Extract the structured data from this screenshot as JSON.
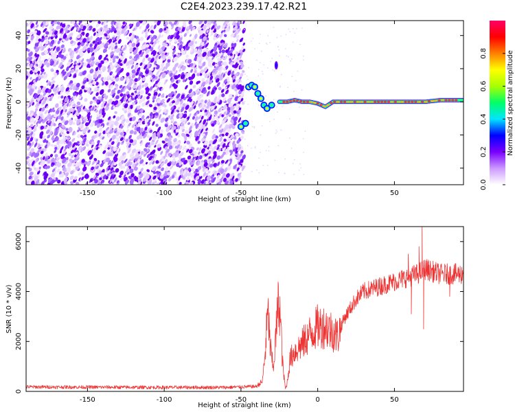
{
  "figure": {
    "title": "C2E4.2023.239.17.42.R21"
  },
  "chart_data": [
    {
      "type": "heatmap",
      "xlabel": "Height of straight line (km)",
      "ylabel": "Frequency (Hz)",
      "xlim": [
        -190,
        95
      ],
      "ylim": [
        -50,
        49
      ],
      "xticks": [
        -150,
        -100,
        -50,
        0,
        50
      ],
      "yticks": [
        -40,
        -20,
        0,
        20,
        40
      ],
      "colorbar": {
        "label": "Normalized spectral amplitude",
        "range": [
          0,
          1
        ],
        "ticks": [
          "0.0",
          "0.2",
          "0.4",
          "0.6",
          "0.8"
        ],
        "colors": [
          "#ffffff",
          "#cc99ff",
          "#7a00ff",
          "#0000ff",
          "#00e5ff",
          "#00ff66",
          "#a8ff00",
          "#ffff00",
          "#ff8000",
          "#ff0000",
          "#ff0066"
        ]
      },
      "noise_region": {
        "x_from": -190,
        "x_to": -50,
        "freq_range": [
          -50,
          49
        ]
      },
      "ridge": [
        {
          "x": -50,
          "y": -15
        },
        {
          "x": -47,
          "y": -13
        },
        {
          "x": -45,
          "y": 9
        },
        {
          "x": -43,
          "y": 10
        },
        {
          "x": -41,
          "y": 9
        },
        {
          "x": -39,
          "y": 5
        },
        {
          "x": -37,
          "y": 2
        },
        {
          "x": -35,
          "y": -2
        },
        {
          "x": -33,
          "y": -4
        },
        {
          "x": -30,
          "y": -2
        },
        {
          "x": -27,
          "y": 22
        },
        {
          "x": -25,
          "y": 0
        },
        {
          "x": -20,
          "y": 0
        },
        {
          "x": -15,
          "y": 1
        },
        {
          "x": -10,
          "y": 0
        },
        {
          "x": -5,
          "y": 0
        },
        {
          "x": 0,
          "y": -1
        },
        {
          "x": 5,
          "y": -3
        },
        {
          "x": 10,
          "y": 0
        },
        {
          "x": 20,
          "y": 0
        },
        {
          "x": 30,
          "y": 0
        },
        {
          "x": 40,
          "y": 0
        },
        {
          "x": 50,
          "y": 0
        },
        {
          "x": 60,
          "y": 0
        },
        {
          "x": 70,
          "y": 0
        },
        {
          "x": 80,
          "y": 1
        },
        {
          "x": 90,
          "y": 1
        }
      ]
    },
    {
      "type": "line",
      "xlabel": "Height of straight line (km)",
      "ylabel": "SNR (10 * v/v)",
      "xlim": [
        -190,
        95
      ],
      "ylim": [
        0,
        6600
      ],
      "xticks": [
        -150,
        -100,
        -50,
        0,
        50
      ],
      "yticks": [
        0,
        2000,
        4000,
        6000
      ],
      "color": "#ee3333",
      "envelope": [
        {
          "x": -190,
          "y": 180
        },
        {
          "x": -150,
          "y": 170
        },
        {
          "x": -100,
          "y": 160
        },
        {
          "x": -60,
          "y": 160
        },
        {
          "x": -40,
          "y": 200
        },
        {
          "x": -36,
          "y": 400
        },
        {
          "x": -34,
          "y": 1700
        },
        {
          "x": -33,
          "y": 2800
        },
        {
          "x": -32,
          "y": 3000
        },
        {
          "x": -31,
          "y": 1800
        },
        {
          "x": -29,
          "y": 900
        },
        {
          "x": -28,
          "y": 1600
        },
        {
          "x": -26,
          "y": 3300
        },
        {
          "x": -25,
          "y": 3600
        },
        {
          "x": -24,
          "y": 2600
        },
        {
          "x": -23,
          "y": 1200
        },
        {
          "x": -22,
          "y": 600
        },
        {
          "x": -21,
          "y": 100
        },
        {
          "x": -20,
          "y": 300
        },
        {
          "x": -18,
          "y": 1300
        },
        {
          "x": -15,
          "y": 1600
        },
        {
          "x": -10,
          "y": 1900
        },
        {
          "x": -5,
          "y": 2300
        },
        {
          "x": 0,
          "y": 2600
        },
        {
          "x": 5,
          "y": 2600
        },
        {
          "x": 10,
          "y": 2400
        },
        {
          "x": 13,
          "y": 2200
        },
        {
          "x": 17,
          "y": 2900
        },
        {
          "x": 25,
          "y": 3700
        },
        {
          "x": 30,
          "y": 4000
        },
        {
          "x": 40,
          "y": 4200
        },
        {
          "x": 50,
          "y": 4400
        },
        {
          "x": 60,
          "y": 4600
        },
        {
          "x": 65,
          "y": 4700
        },
        {
          "x": 70,
          "y": 4900
        },
        {
          "x": 80,
          "y": 4700
        },
        {
          "x": 95,
          "y": 4700
        }
      ],
      "events": [
        {
          "x": 68,
          "y": 6600
        },
        {
          "x": 69,
          "y": 2500
        },
        {
          "x": 66,
          "y": 5800
        },
        {
          "x": 61,
          "y": 3100
        },
        {
          "x": 59,
          "y": 5500
        },
        {
          "x": 86,
          "y": 3800
        }
      ]
    }
  ]
}
